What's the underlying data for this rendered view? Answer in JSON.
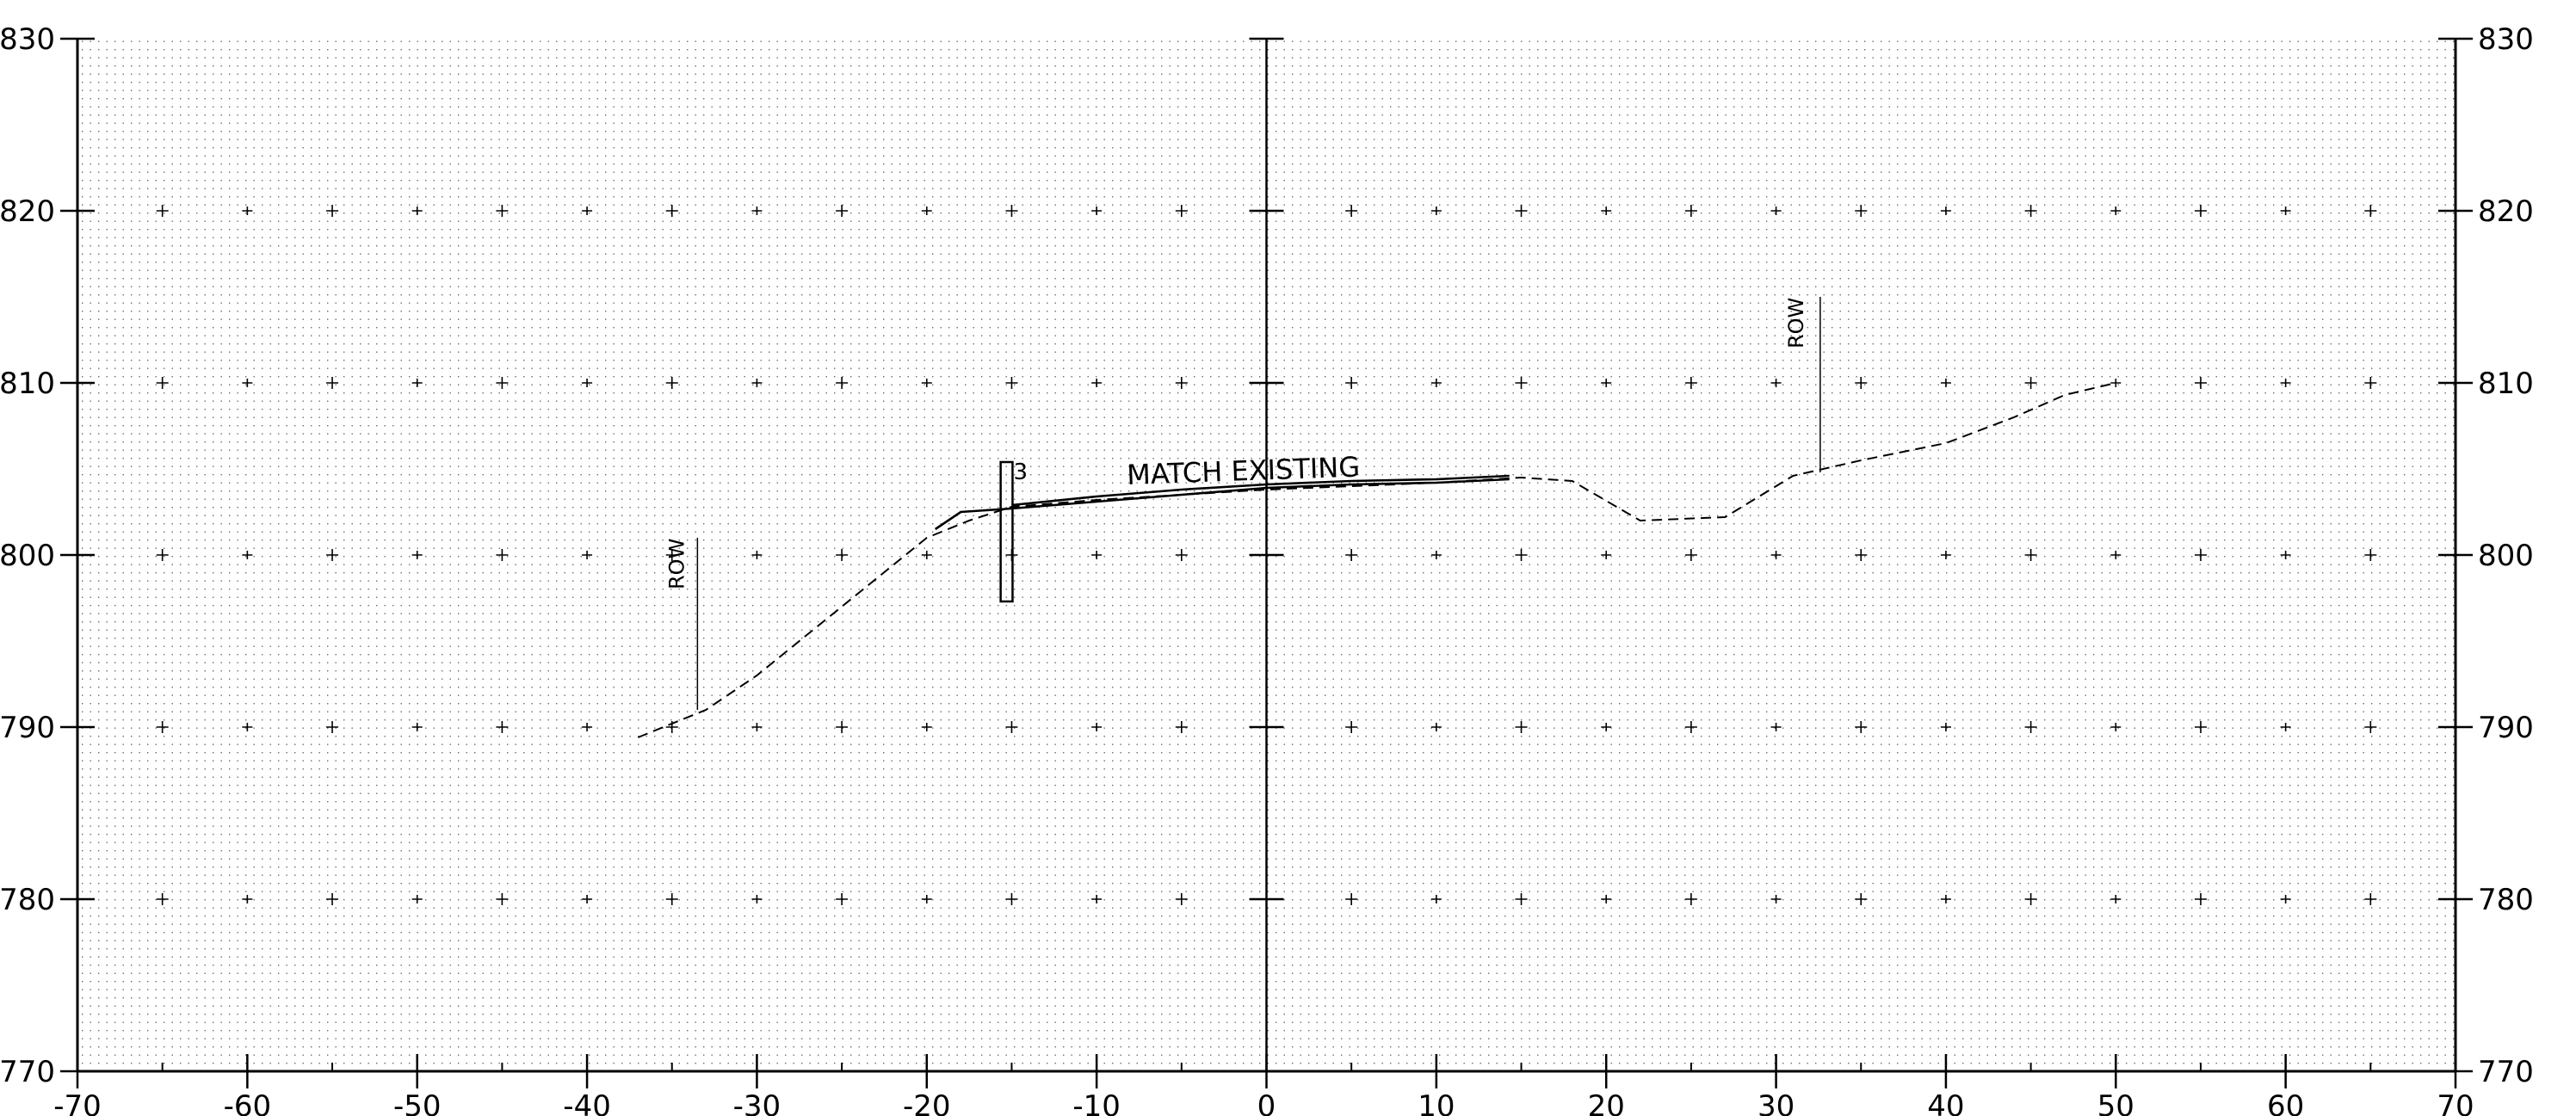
{
  "chart_data": {
    "type": "line",
    "title": "",
    "xlabel": "",
    "ylabel": "",
    "xlim": [
      -70,
      70
    ],
    "ylim": [
      770,
      830
    ],
    "x_ticks": [
      -70,
      -60,
      -50,
      -40,
      -30,
      -20,
      -10,
      0,
      10,
      20,
      30,
      40,
      50,
      60,
      70
    ],
    "x_tick_labels": [
      "-70",
      "-60",
      "-50",
      "-40",
      "-30",
      "-20",
      "-10",
      "0",
      "10",
      "20",
      "30",
      "40",
      "50",
      "60",
      "70"
    ],
    "y_ticks": [
      770,
      780,
      790,
      800,
      810,
      820,
      830
    ],
    "y_tick_labels": [
      "770",
      "780",
      "790",
      "800",
      "810",
      "820",
      "830"
    ],
    "grid": true,
    "series": [
      {
        "style": "dashed",
        "x": [
          -37,
          -33,
          -30,
          -25,
          -20,
          -17.5,
          -15,
          -10,
          -5,
          0,
          5,
          10,
          15,
          18,
          22,
          27,
          31,
          35,
          40,
          44,
          47,
          50
        ],
        "y": [
          789.4,
          791,
          793,
          797,
          801,
          802,
          802.8,
          803.2,
          803.5,
          803.8,
          804,
          804.2,
          804.5,
          804.3,
          802,
          802.2,
          804.6,
          805.5,
          806.5,
          808,
          809.3,
          810
        ]
      },
      {
        "style": "solid",
        "x": [
          -19.5,
          -18,
          -15,
          -10,
          -5,
          0,
          5,
          10,
          14.3
        ],
        "y": [
          801.5,
          802.5,
          802.7,
          803.1,
          803.5,
          803.9,
          804.1,
          804.2,
          804.4
        ]
      },
      {
        "style": "solid",
        "x": [
          -15,
          -10,
          -5,
          0,
          5,
          10,
          14.3
        ],
        "y": [
          802.9,
          803.4,
          803.8,
          804.1,
          804.3,
          804.4,
          804.6
        ]
      }
    ],
    "annotations": [
      {
        "text": "MATCH EXISTING",
        "x": -8.2,
        "y": 804.1,
        "rotation": -2
      },
      {
        "text": "ROW",
        "x": -34.3,
        "y": 798,
        "rotation": -90,
        "leader_x": -33.5,
        "leader_y": [
          791,
          801
        ]
      },
      {
        "text": "ROW",
        "x": 31.6,
        "y": 812,
        "rotation": -90,
        "leader_x": 32.6,
        "leader_y": [
          804.8,
          815
        ]
      },
      {
        "text": "3",
        "x": -14.9,
        "y": 804.4
      }
    ],
    "marker": {
      "x": -15.3,
      "y": [
        797.3,
        805.4
      ],
      "width": 0.7
    }
  }
}
